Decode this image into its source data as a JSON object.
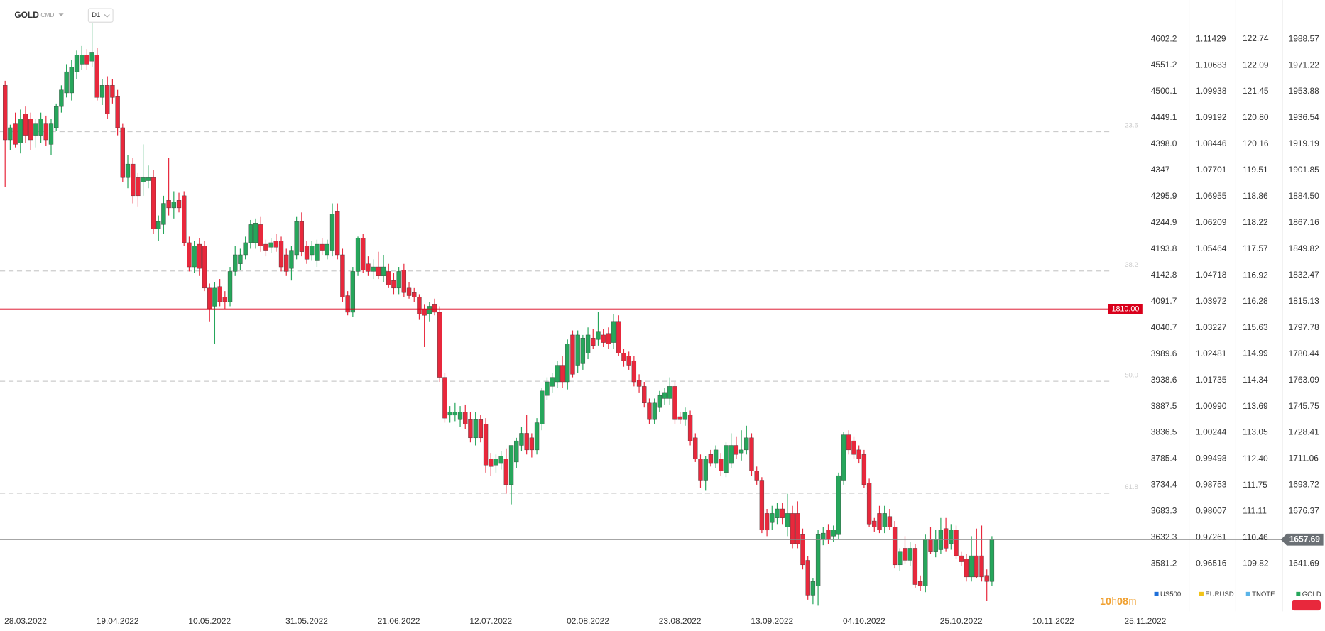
{
  "chart_data": {
    "type": "candlestick",
    "symbol": "GOLD",
    "market": "CMD",
    "interval": "D1",
    "up_color": "#26a65b",
    "down_color": "#e8283c",
    "name": "GOLD",
    "color": "#26a65b",
    "xlim": [
      -1,
      221.6
    ],
    "xticks": [
      {
        "value": 4,
        "label": "28.03.2022"
      },
      {
        "value": 22,
        "label": "19.04.2022"
      },
      {
        "value": 40,
        "label": "10.05.2022"
      },
      {
        "value": 59,
        "label": "31.05.2022"
      },
      {
        "value": 77,
        "label": "21.06.2022"
      },
      {
        "value": 95,
        "label": "12.07.2022"
      },
      {
        "value": 114,
        "label": "02.08.2022"
      },
      {
        "value": 132,
        "label": "23.08.2022"
      },
      {
        "value": 150,
        "label": "13.09.2022"
      },
      {
        "value": 168,
        "label": "04.10.2022"
      },
      {
        "value": 187,
        "label": "25.10.2022"
      },
      {
        "value": 205,
        "label": "10.11.2022"
      },
      {
        "value": 223,
        "label": "25.11.2022"
      }
    ],
    "ylim": [
      1610.26,
      2014.39
    ],
    "yticks": [
      1988.57,
      1971.22,
      1953.88,
      1936.54,
      1919.19,
      1901.85,
      {
        "value": 1884.5,
        "label": "1884.50"
      },
      1867.16,
      1849.82,
      1832.47,
      1815.13,
      1797.78,
      1780.44,
      1763.09,
      1745.75,
      1728.41,
      1711.06,
      1693.72,
      1676.37,
      1641.69
    ],
    "price_axes": [
      {
        "name": "US500",
        "color": "#1e6fd9",
        "ylim": [
          3488.7,
          4678.2
        ],
        "yticks": [
          4602.2,
          4551.2,
          4500.1,
          4449.1,
          {
            "value": 4398,
            "label": "4398.0"
          },
          4347,
          4295.9,
          4244.9,
          4193.8,
          4142.8,
          4091.7,
          4040.7,
          3989.6,
          3938.6,
          3887.5,
          3836.5,
          3785.4,
          3734.4,
          3683.3,
          3632.3,
          3581.2
        ]
      },
      {
        "name": "EURUSD",
        "color": "#f2c318",
        "ylim": [
          0.95165,
          1.12539
        ],
        "yticks": [
          1.11429,
          1.10683,
          1.09938,
          1.09192,
          1.08446,
          1.07701,
          1.06955,
          1.06209,
          1.05464,
          1.04718,
          1.03972,
          1.03227,
          1.02481,
          1.01735,
          {
            "value": 1.0099,
            "label": "1.00990"
          },
          1.00244,
          0.99498,
          0.98753,
          0.98007,
          0.97261,
          0.96516
        ]
      },
      {
        "name": "TNOTE",
        "color": "#5ab4e8",
        "ylim": [
          108.65,
          123.7
        ],
        "yticks": [
          122.74,
          122.09,
          121.45,
          {
            "value": 120.8,
            "label": "120.80"
          },
          120.16,
          119.51,
          118.86,
          118.22,
          117.57,
          116.92,
          116.28,
          115.63,
          114.99,
          114.34,
          113.69,
          113.05,
          {
            "value": 112.4,
            "label": "112.40"
          },
          111.75,
          111.11,
          110.46,
          109.82
        ]
      }
    ],
    "levels": [
      {
        "value": 1927.4,
        "label": "23.6"
      },
      {
        "value": 1835.3,
        "label": "38.2"
      },
      {
        "value": 1762.4,
        "label": "50.0"
      },
      {
        "value": 1688.3,
        "label": "61.8"
      }
    ],
    "hline": {
      "value": 1810,
      "label": "1810.00",
      "color": "#d9001b"
    },
    "last_price": 1657.69,
    "countdown": [
      "10",
      "h",
      "08",
      "m"
    ],
    "candles": [
      [
        1958,
        1961,
        1891,
        1922
      ],
      [
        1922,
        1932,
        1915,
        1930
      ],
      [
        1933,
        1940,
        1917,
        1919
      ],
      [
        1920,
        1942,
        1913,
        1936
      ],
      [
        1939,
        1944,
        1920,
        1925
      ],
      [
        1936,
        1940,
        1915,
        1922
      ],
      [
        1925,
        1936,
        1917,
        1933
      ],
      [
        1925,
        1940,
        1920,
        1936
      ],
      [
        1933,
        1938,
        1918,
        1922
      ],
      [
        1919,
        1936,
        1912,
        1933
      ],
      [
        1930,
        1946,
        1928,
        1944
      ],
      [
        1944,
        1958,
        1940,
        1955
      ],
      [
        1953,
        1972,
        1950,
        1967
      ],
      [
        1953,
        1975,
        1948,
        1970
      ],
      [
        1967,
        1981,
        1962,
        1978
      ],
      [
        1972,
        1984,
        1968,
        1978
      ],
      [
        1978,
        1982,
        1968,
        1972
      ],
      [
        1974,
        1999,
        1970,
        1980
      ],
      [
        1978,
        1983,
        1948,
        1950
      ],
      [
        1950,
        1962,
        1945,
        1958
      ],
      [
        1958,
        1964,
        1936,
        1939
      ],
      [
        1958,
        1962,
        1946,
        1950
      ],
      [
        1951,
        1955,
        1925,
        1930
      ],
      [
        1930,
        1933,
        1894,
        1897
      ],
      [
        1897,
        1912,
        1890,
        1906
      ],
      [
        1906,
        1910,
        1880,
        1885
      ],
      [
        1897,
        1900,
        1878,
        1885
      ],
      [
        1894,
        1919,
        1885,
        1897
      ],
      [
        1895,
        1905,
        1890,
        1897
      ],
      [
        1897,
        1902,
        1860,
        1863
      ],
      [
        1863,
        1872,
        1855,
        1868
      ],
      [
        1866,
        1885,
        1860,
        1880
      ],
      [
        1882,
        1910,
        1872,
        1877
      ],
      [
        1877,
        1888,
        1870,
        1881
      ],
      [
        1882,
        1887,
        1874,
        1877
      ],
      [
        1885,
        1888,
        1852,
        1854
      ],
      [
        1854,
        1858,
        1835,
        1838
      ],
      [
        1838,
        1855,
        1834,
        1852
      ],
      [
        1853,
        1857,
        1832,
        1837
      ],
      [
        1852,
        1855,
        1822,
        1824
      ],
      [
        1824,
        1827,
        1802,
        1810
      ],
      [
        1812,
        1828,
        1787,
        1824
      ],
      [
        1825,
        1830,
        1812,
        1815
      ],
      [
        1818,
        1822,
        1810,
        1815
      ],
      [
        1815,
        1838,
        1812,
        1835
      ],
      [
        1835,
        1852,
        1832,
        1846
      ],
      [
        1840,
        1850,
        1836,
        1846
      ],
      [
        1846,
        1858,
        1843,
        1854
      ],
      [
        1854,
        1869,
        1850,
        1866
      ],
      [
        1854,
        1870,
        1850,
        1867
      ],
      [
        1866,
        1871,
        1848,
        1852
      ],
      [
        1853,
        1856,
        1845,
        1849
      ],
      [
        1851,
        1857,
        1847,
        1854
      ],
      [
        1855,
        1860,
        1848,
        1851
      ],
      [
        1855,
        1858,
        1835,
        1838
      ],
      [
        1846,
        1850,
        1832,
        1835
      ],
      [
        1837,
        1852,
        1829,
        1849
      ],
      [
        1846,
        1871,
        1843,
        1868
      ],
      [
        1868,
        1874,
        1845,
        1848
      ],
      [
        1852,
        1855,
        1840,
        1843
      ],
      [
        1846,
        1855,
        1842,
        1852
      ],
      [
        1842,
        1856,
        1838,
        1853
      ],
      [
        1853,
        1857,
        1846,
        1849
      ],
      [
        1846,
        1856,
        1843,
        1853
      ],
      [
        1849,
        1880,
        1845,
        1873
      ],
      [
        1875,
        1880,
        1843,
        1846
      ],
      [
        1846,
        1850,
        1815,
        1818
      ],
      [
        1819,
        1822,
        1806,
        1808
      ],
      [
        1808,
        1838,
        1805,
        1835
      ],
      [
        1835,
        1858,
        1832,
        1857
      ],
      [
        1857,
        1860,
        1834,
        1836
      ],
      [
        1840,
        1845,
        1832,
        1835
      ],
      [
        1835,
        1843,
        1830,
        1838
      ],
      [
        1838,
        1848,
        1830,
        1832
      ],
      [
        1832,
        1846,
        1828,
        1838
      ],
      [
        1835,
        1840,
        1824,
        1826
      ],
      [
        1829,
        1834,
        1820,
        1824
      ],
      [
        1824,
        1838,
        1820,
        1835
      ],
      [
        1836,
        1840,
        1818,
        1821
      ],
      [
        1824,
        1828,
        1817,
        1819
      ],
      [
        1821,
        1824,
        1815,
        1818
      ],
      [
        1818,
        1820,
        1803,
        1807
      ],
      [
        1810,
        1813,
        1785,
        1806
      ],
      [
        1807,
        1815,
        1802,
        1812
      ],
      [
        1813,
        1817,
        1806,
        1808
      ],
      [
        1808,
        1812,
        1762,
        1765
      ],
      [
        1765,
        1768,
        1735,
        1738
      ],
      [
        1740,
        1746,
        1735,
        1742
      ],
      [
        1740,
        1748,
        1736,
        1742
      ],
      [
        1737,
        1746,
        1732,
        1742
      ],
      [
        1742,
        1747,
        1731,
        1734
      ],
      [
        1737,
        1742,
        1722,
        1725
      ],
      [
        1725,
        1742,
        1720,
        1737
      ],
      [
        1737,
        1740,
        1722,
        1725
      ],
      [
        1734,
        1738,
        1702,
        1707
      ],
      [
        1711,
        1715,
        1700,
        1706
      ],
      [
        1707,
        1714,
        1702,
        1711
      ],
      [
        1708,
        1716,
        1704,
        1713
      ],
      [
        1711,
        1718,
        1688,
        1694
      ],
      [
        1694,
        1720,
        1681,
        1720
      ],
      [
        1709,
        1725,
        1705,
        1723
      ],
      [
        1720,
        1732,
        1716,
        1728
      ],
      [
        1728,
        1740,
        1714,
        1717
      ],
      [
        1725,
        1728,
        1712,
        1717
      ],
      [
        1717,
        1738,
        1714,
        1735
      ],
      [
        1734,
        1758,
        1730,
        1756
      ],
      [
        1753,
        1765,
        1750,
        1762
      ],
      [
        1759,
        1768,
        1755,
        1765
      ],
      [
        1762,
        1776,
        1758,
        1773
      ],
      [
        1773,
        1779,
        1758,
        1762
      ],
      [
        1762,
        1790,
        1757,
        1787
      ],
      [
        1793,
        1796,
        1765,
        1767
      ],
      [
        1773,
        1796,
        1768,
        1793
      ],
      [
        1774,
        1793,
        1770,
        1791
      ],
      [
        1781,
        1798,
        1777,
        1793
      ],
      [
        1791,
        1797,
        1784,
        1786
      ],
      [
        1790,
        1808,
        1786,
        1795
      ],
      [
        1793,
        1797,
        1785,
        1788
      ],
      [
        1794,
        1798,
        1784,
        1787
      ],
      [
        1788,
        1807,
        1784,
        1802
      ],
      [
        1802,
        1806,
        1779,
        1781
      ],
      [
        1781,
        1784,
        1772,
        1776
      ],
      [
        1779,
        1782,
        1770,
        1773
      ],
      [
        1776,
        1779,
        1759,
        1762
      ],
      [
        1763,
        1767,
        1755,
        1759
      ],
      [
        1759,
        1762,
        1745,
        1748
      ],
      [
        1748,
        1751,
        1734,
        1737
      ],
      [
        1737,
        1751,
        1734,
        1748
      ],
      [
        1745,
        1756,
        1742,
        1753
      ],
      [
        1751,
        1758,
        1747,
        1755
      ],
      [
        1751,
        1765,
        1747,
        1759
      ],
      [
        1759,
        1762,
        1734,
        1737
      ],
      [
        1739,
        1742,
        1734,
        1737
      ],
      [
        1737,
        1745,
        1733,
        1742
      ],
      [
        1740,
        1743,
        1720,
        1723
      ],
      [
        1725,
        1728,
        1709,
        1711
      ],
      [
        1711,
        1714,
        1692,
        1697
      ],
      [
        1697,
        1713,
        1690,
        1711
      ],
      [
        1714,
        1717,
        1706,
        1708
      ],
      [
        1708,
        1720,
        1705,
        1717
      ],
      [
        1711,
        1715,
        1700,
        1703
      ],
      [
        1702,
        1722,
        1699,
        1720
      ],
      [
        1708,
        1728,
        1705,
        1720
      ],
      [
        1720,
        1726,
        1711,
        1714
      ],
      [
        1715,
        1730,
        1710,
        1717
      ],
      [
        1717,
        1733,
        1714,
        1725
      ],
      [
        1725,
        1728,
        1700,
        1703
      ],
      [
        1703,
        1706,
        1694,
        1697
      ],
      [
        1697,
        1699,
        1662,
        1664
      ],
      [
        1675,
        1678,
        1660,
        1664
      ],
      [
        1669,
        1680,
        1664,
        1675
      ],
      [
        1672,
        1682,
        1668,
        1678
      ],
      [
        1678,
        1682,
        1668,
        1672
      ],
      [
        1666,
        1688,
        1660,
        1675
      ],
      [
        1675,
        1680,
        1652,
        1655
      ],
      [
        1675,
        1683,
        1652,
        1655
      ],
      [
        1661,
        1665,
        1638,
        1641
      ],
      [
        1644,
        1647,
        1618,
        1621
      ],
      [
        1621,
        1632,
        1615,
        1630
      ],
      [
        1627,
        1664,
        1614,
        1661
      ],
      [
        1658,
        1666,
        1654,
        1662
      ],
      [
        1664,
        1668,
        1655,
        1658
      ],
      [
        1660,
        1667,
        1656,
        1664
      ],
      [
        1661,
        1702,
        1658,
        1700
      ],
      [
        1697,
        1729,
        1694,
        1727
      ],
      [
        1727,
        1730,
        1714,
        1717
      ],
      [
        1723,
        1726,
        1711,
        1714
      ],
      [
        1717,
        1720,
        1708,
        1711
      ],
      [
        1714,
        1717,
        1692,
        1694
      ],
      [
        1695,
        1698,
        1666,
        1668
      ],
      [
        1670,
        1672,
        1663,
        1666
      ],
      [
        1675,
        1680,
        1662,
        1664
      ],
      [
        1666,
        1680,
        1662,
        1675
      ],
      [
        1673,
        1678,
        1664,
        1666
      ],
      [
        1666,
        1670,
        1639,
        1641
      ],
      [
        1641,
        1652,
        1637,
        1650
      ],
      [
        1652,
        1660,
        1642,
        1644
      ],
      [
        1644,
        1656,
        1640,
        1652
      ],
      [
        1652,
        1655,
        1626,
        1628
      ],
      [
        1630,
        1634,
        1624,
        1627
      ],
      [
        1627,
        1661,
        1623,
        1658
      ],
      [
        1658,
        1666,
        1648,
        1650
      ],
      [
        1650,
        1664,
        1646,
        1658
      ],
      [
        1651,
        1672,
        1648,
        1664
      ],
      [
        1665,
        1672,
        1650,
        1652
      ],
      [
        1655,
        1668,
        1651,
        1664
      ],
      [
        1664,
        1667,
        1645,
        1647
      ],
      [
        1647,
        1650,
        1640,
        1643
      ],
      [
        1645,
        1648,
        1630,
        1633
      ],
      [
        1633,
        1660,
        1630,
        1647
      ],
      [
        1647,
        1665,
        1632,
        1633
      ],
      [
        1647,
        1667,
        1630,
        1633
      ],
      [
        1634,
        1638,
        1617,
        1630
      ],
      [
        1630,
        1660,
        1627,
        1657.69
      ]
    ]
  }
}
